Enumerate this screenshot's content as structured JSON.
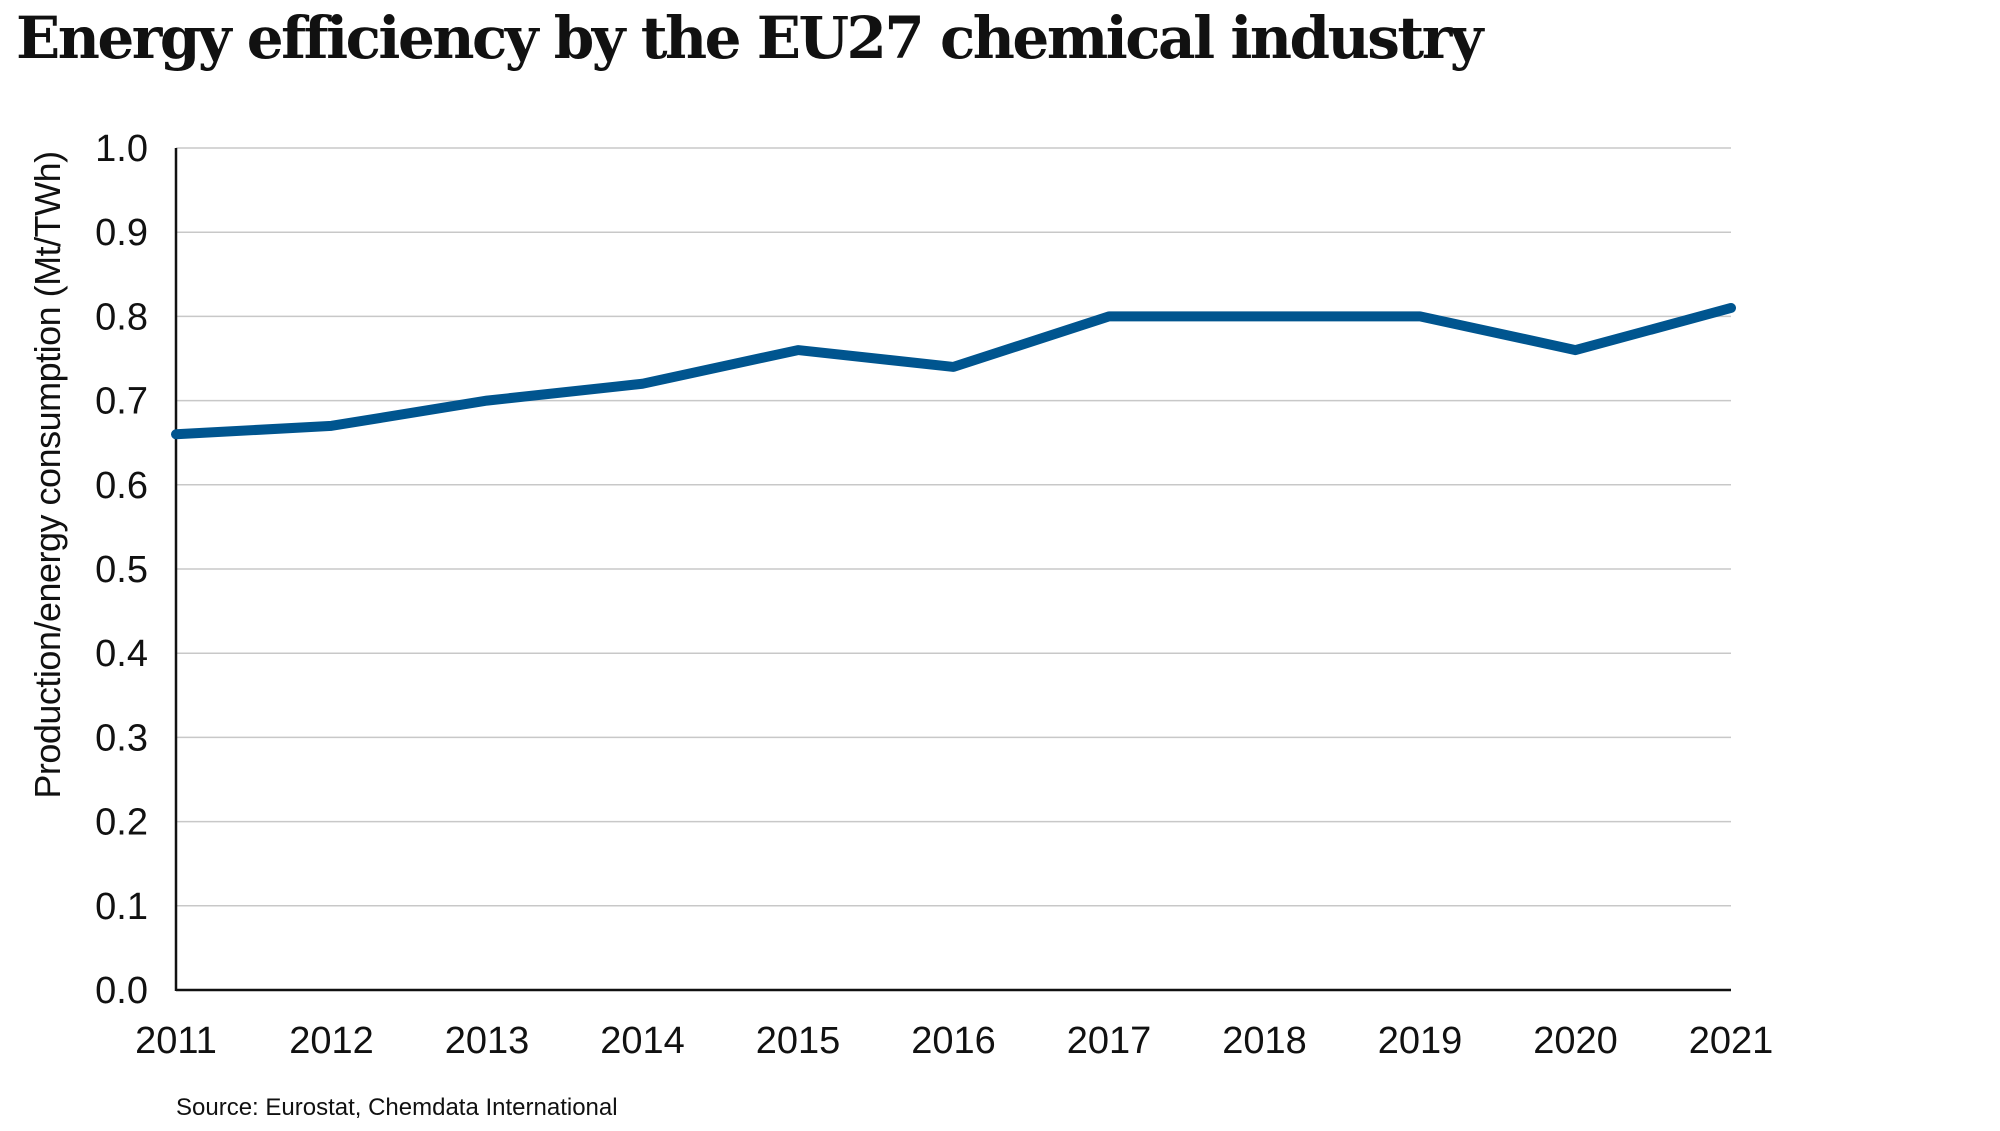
{
  "chart_data": {
    "type": "line",
    "title": "Energy efficiency by the EU27 chemical industry",
    "xlabel": "",
    "ylabel": "Production/energy consumption (Mt/TWh)",
    "categories": [
      "2011",
      "2012",
      "2013",
      "2014",
      "2015",
      "2016",
      "2017",
      "2018",
      "2019",
      "2020",
      "2021"
    ],
    "series": [
      {
        "name": "Energy efficiency",
        "color": "#00558f",
        "values": [
          0.66,
          0.67,
          0.7,
          0.72,
          0.76,
          0.74,
          0.8,
          0.8,
          0.8,
          0.76,
          0.81
        ]
      }
    ],
    "ylim": [
      0.0,
      1.0
    ],
    "yticks": [
      "0.0",
      "0.1",
      "0.2",
      "0.3",
      "0.4",
      "0.5",
      "0.6",
      "0.7",
      "0.8",
      "0.9",
      "1.0"
    ],
    "grid": true,
    "grid_color": "#c8c8c8",
    "legend": "none",
    "source": "Source: Eurostat, Chemdata International"
  }
}
